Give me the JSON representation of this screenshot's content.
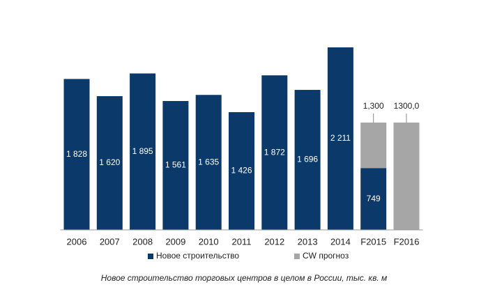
{
  "chart_data": {
    "type": "stacked_bar",
    "caption": "Новое строительство торговых центров в целом в России, тыс. кв. м",
    "categories": [
      "2006",
      "2007",
      "2008",
      "2009",
      "2010",
      "2011",
      "2012",
      "2013",
      "2014",
      "F2015",
      "F2016"
    ],
    "series": [
      {
        "name": "Новое строительство",
        "color": "#0b3a6a",
        "values": [
          1828,
          1620,
          1895,
          1561,
          1635,
          1426,
          1872,
          1696,
          2211,
          749,
          null
        ],
        "value_labels": [
          "1 828",
          "1 620",
          "1 895",
          "1 561",
          "1 635",
          "1 426",
          "1 872",
          "1 696",
          "2 211",
          "749",
          null
        ]
      },
      {
        "name": "CW прогноз",
        "color": "#a6a6a6",
        "values": [
          null,
          null,
          null,
          null,
          null,
          null,
          null,
          null,
          null,
          551,
          1300
        ]
      }
    ],
    "totals": [
      null,
      null,
      null,
      null,
      null,
      null,
      null,
      null,
      null,
      1300,
      1300
    ],
    "total_labels": [
      null,
      null,
      null,
      null,
      null,
      null,
      null,
      null,
      null,
      "1,300",
      "1300,0"
    ],
    "legend": "bottom"
  }
}
